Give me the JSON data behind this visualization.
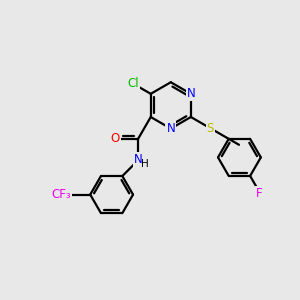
{
  "background_color": "#e8e8e8",
  "bond_color": "#000000",
  "atom_colors": {
    "Cl": "#00bb00",
    "N": "#0000ff",
    "O": "#ff0000",
    "S": "#bbbb00",
    "F_cf3": "#ee00ee",
    "F_benzyl": "#ee00ee",
    "H": "#000000"
  },
  "line_width": 1.6,
  "font_size": 8.5,
  "figsize": [
    3.0,
    3.0
  ],
  "dpi": 100
}
